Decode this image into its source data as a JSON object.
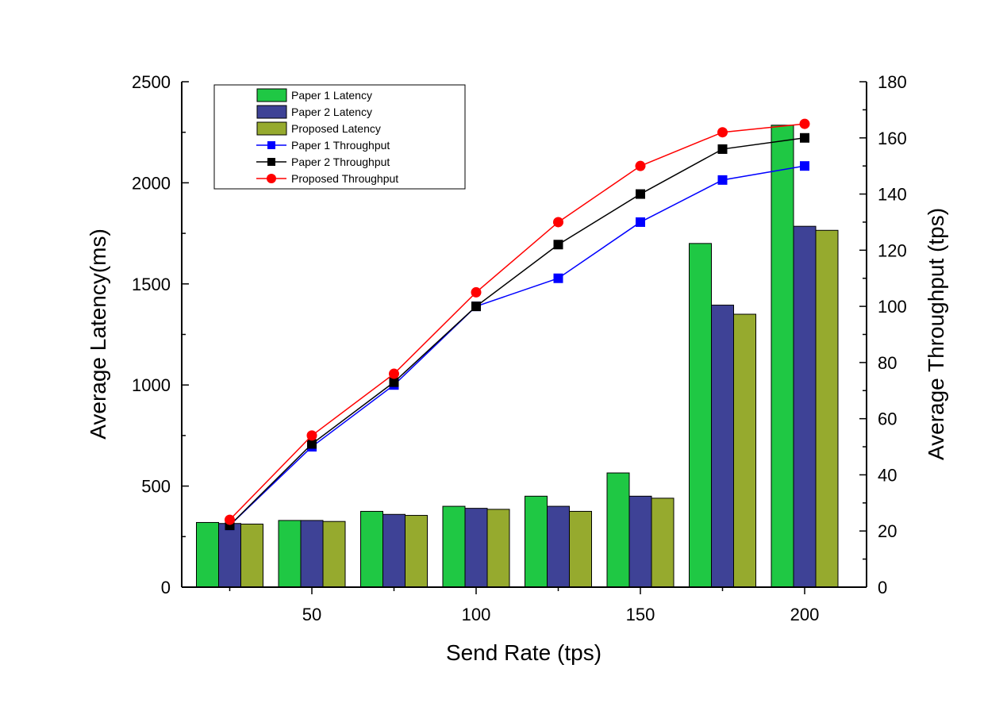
{
  "chart_data": {
    "type": "bar+line",
    "categories": [
      25,
      50,
      75,
      100,
      125,
      150,
      175,
      200
    ],
    "xlabel": "Send Rate (tps)",
    "x_ticks": [
      50,
      100,
      150,
      200
    ],
    "ylabel_left": "Average Latency(ms)",
    "ylim_left": [
      0,
      2500
    ],
    "y_ticks_left": [
      0,
      500,
      1000,
      1500,
      2000,
      2500
    ],
    "ylabel_right": "Average Throughput (tps)",
    "ylim_right": [
      0,
      180
    ],
    "y_ticks_right": [
      0,
      20,
      40,
      60,
      80,
      100,
      120,
      140,
      160,
      180
    ],
    "bar_series": [
      {
        "name": "Paper 1  Latency",
        "color": "#1fc844",
        "values": [
          320,
          330,
          375,
          400,
          450,
          565,
          1700,
          2285
        ]
      },
      {
        "name": "Paper 2 Latency",
        "color": "#3e4296",
        "values": [
          315,
          330,
          360,
          390,
          400,
          450,
          1395,
          1785
        ]
      },
      {
        "name": "Proposed Latency",
        "color": "#96aa2e",
        "values": [
          312,
          325,
          355,
          385,
          375,
          440,
          1350,
          1765
        ]
      }
    ],
    "line_series": [
      {
        "name": "Paper 1 Throughput",
        "color": "#0000ff",
        "marker": "square",
        "values": [
          22,
          50,
          72,
          100,
          110,
          130,
          145,
          150
        ]
      },
      {
        "name": "Paper 2 Throughput",
        "color": "#000000",
        "marker": "square",
        "values": [
          22,
          51,
          73,
          100,
          122,
          140,
          156,
          160
        ]
      },
      {
        "name": "Proposed Throughput",
        "color": "#ff0000",
        "marker": "circle",
        "values": [
          24,
          54,
          76,
          105,
          130,
          150,
          162,
          165
        ]
      }
    ],
    "legend_position": "top-left",
    "grid": false
  }
}
